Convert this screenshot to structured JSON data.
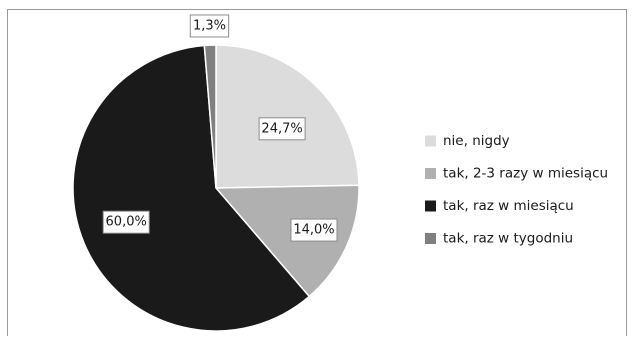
{
  "chart_data": {
    "type": "pie",
    "title": "",
    "categories": [
      "nie, nigdy",
      "tak, 2-3 razy w miesiącu",
      "tak, raz w miesiącu",
      "tak, raz w tygodniu"
    ],
    "values": [
      24.7,
      14.0,
      60.0,
      1.3
    ],
    "value_labels": [
      "24,7%",
      "14,0%",
      "60,0%",
      "1,3%"
    ],
    "colors": [
      "#dcdcdc",
      "#b0b0b0",
      "#1a1a1a",
      "#808080"
    ],
    "start": "12 o'clock",
    "direction": "clockwise",
    "legend_position": "right"
  }
}
